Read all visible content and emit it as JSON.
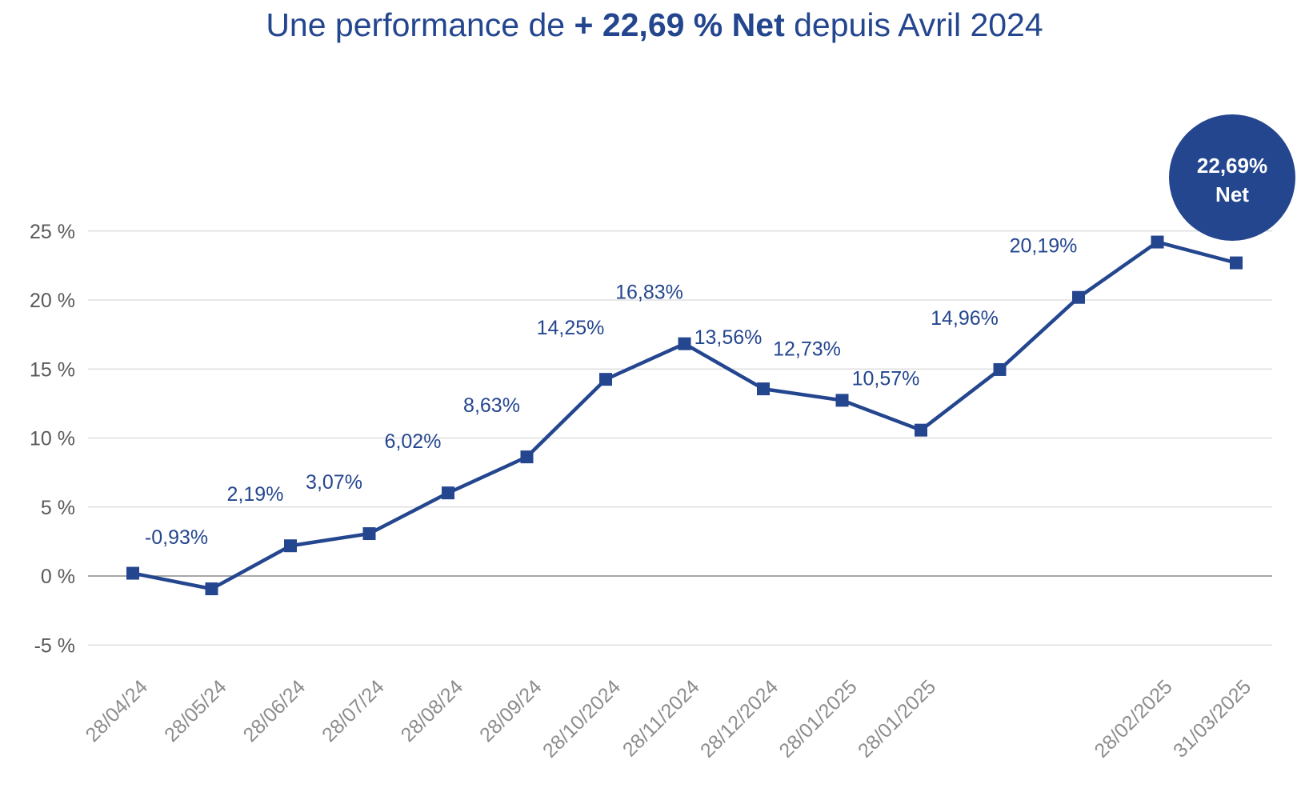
{
  "title": {
    "prefix": "Une performance de ",
    "highlight": "+ 22,69 % Net",
    "suffix": " depuis Avril 2024"
  },
  "colors": {
    "series": "#24468f",
    "grid": "#d9d9d9",
    "zero_line": "#8c8c8c",
    "tick_text": "#595959"
  },
  "chart_data": {
    "type": "line",
    "categories": [
      "28/04/24",
      "28/05/24",
      "28/06/24",
      "28/07/24",
      "28/08/24",
      "28/09/24",
      "28/10/2024",
      "28/11/2024",
      "28/12/2024",
      "28/01/2025",
      "28/01/2025",
      "",
      "",
      "28/02/2025",
      "31/03/2025"
    ],
    "series": [
      {
        "values": [
          0.2,
          -0.93,
          2.19,
          3.07,
          6.02,
          8.63,
          14.25,
          16.83,
          13.56,
          12.73,
          10.57,
          14.96,
          20.19,
          24.2,
          22.69
        ]
      }
    ],
    "data_labels": [
      "",
      "-0,93%",
      "2,19%",
      "3,07%",
      "6,02%",
      "8,63%",
      "14,25%",
      "16,83%",
      "13,56%",
      "12,73%",
      "10,57%",
      "14,96%",
      "20,19%",
      "",
      ""
    ],
    "y_ticks": [
      {
        "value": 25,
        "label": "25 %"
      },
      {
        "value": 20,
        "label": "20 %"
      },
      {
        "value": 15,
        "label": "15 %"
      },
      {
        "value": 10,
        "label": "10 %"
      },
      {
        "value": 5,
        "label": "5 %"
      },
      {
        "value": 0,
        "label": "0 %"
      },
      {
        "value": -5,
        "label": "-5 %"
      }
    ],
    "ylim": [
      -5,
      25
    ],
    "grid": true,
    "callout": {
      "line1": "22,69%",
      "line2": "Net"
    }
  }
}
